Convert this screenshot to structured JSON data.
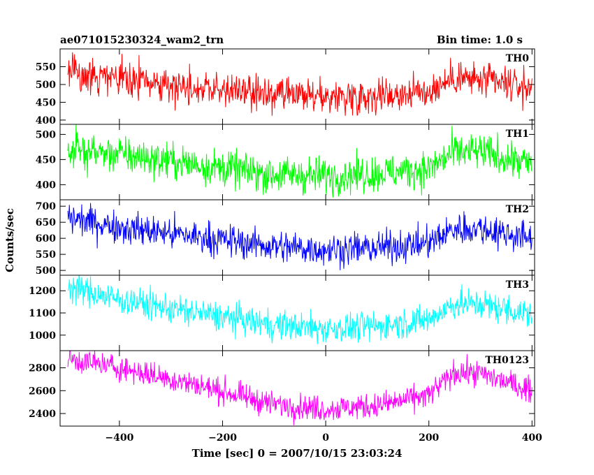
{
  "header": {
    "title": "ae071015230324_wam2_trn",
    "bin_time": "Bin time: 1.0 s"
  },
  "chart_data": {
    "type": "line",
    "title": "ae071015230324_wam2_trn",
    "subtitle": "Bin time: 1.0 s",
    "xlabel": "Time [sec] 0 = 2007/10/15 23:03:24",
    "ylabel": "Counts/sec",
    "xlim": [
      -515,
      405
    ],
    "xticks": [
      -400,
      -200,
      0,
      200,
      400
    ],
    "xtick_labels": [
      "−400",
      "−200",
      "0",
      "200",
      "400"
    ],
    "x_start": -500,
    "x_end": 400,
    "bin_seconds": 1,
    "grid": false,
    "panels": [
      {
        "name": "TH0",
        "color": "#ff0000",
        "ylim": [
          388,
          600
        ],
        "yticks": [
          400,
          450,
          500,
          550
        ],
        "ytick_labels": [
          "400",
          "450",
          "500",
          "550"
        ],
        "trend": {
          "x": [
            -500,
            -400,
            -250,
            -100,
            0,
            100,
            200,
            250,
            300,
            400
          ],
          "y": [
            530,
            515,
            492,
            468,
            465,
            470,
            480,
            520,
            510,
            490
          ]
        },
        "noise": 24
      },
      {
        "name": "TH1",
        "color": "#00ff00",
        "ylim": [
          370,
          520
        ],
        "yticks": [
          400,
          450,
          500
        ],
        "ytick_labels": [
          "400",
          "450",
          "500"
        ],
        "trend": {
          "x": [
            -500,
            -400,
            -250,
            -100,
            0,
            100,
            200,
            250,
            300,
            400
          ],
          "y": [
            470,
            460,
            440,
            420,
            418,
            422,
            432,
            465,
            465,
            440
          ]
        },
        "noise": 18
      },
      {
        "name": "TH2",
        "color": "#0000ff",
        "ylim": [
          485,
          720
        ],
        "yticks": [
          500,
          550,
          600,
          650,
          700
        ],
        "ytick_labels": [
          "500",
          "550",
          "600",
          "650",
          "700"
        ],
        "trend": {
          "x": [
            -500,
            -400,
            -250,
            -100,
            0,
            100,
            200,
            250,
            300,
            400
          ],
          "y": [
            665,
            635,
            605,
            575,
            565,
            570,
            585,
            630,
            630,
            600
          ]
        },
        "noise": 25
      },
      {
        "name": "TH3",
        "color": "#00ffff",
        "ylim": [
          930,
          1270
        ],
        "yticks": [
          1000,
          1100,
          1200
        ],
        "ytick_labels": [
          "1000",
          "1100",
          "1200"
        ],
        "trend": {
          "x": [
            -500,
            -400,
            -250,
            -100,
            0,
            100,
            200,
            250,
            300,
            400
          ],
          "y": [
            1220,
            1160,
            1100,
            1045,
            1030,
            1040,
            1070,
            1140,
            1140,
            1090
          ]
        },
        "noise": 33
      },
      {
        "name": "TH0123",
        "color": "#ff00ff",
        "ylim": [
          2290,
          2950
        ],
        "yticks": [
          2400,
          2600,
          2800
        ],
        "ytick_labels": [
          "2400",
          "2600",
          "2800"
        ],
        "trend": {
          "x": [
            -500,
            -400,
            -250,
            -100,
            0,
            100,
            200,
            250,
            300,
            400
          ],
          "y": [
            2880,
            2800,
            2650,
            2480,
            2440,
            2470,
            2560,
            2760,
            2750,
            2600
          ]
        },
        "noise": 55
      }
    ]
  }
}
